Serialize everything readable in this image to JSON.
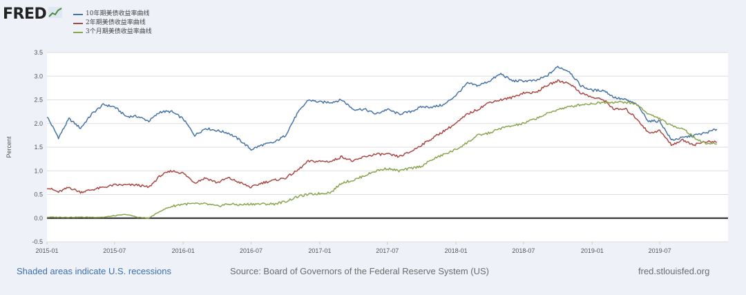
{
  "header": {
    "logo_text": "FRED"
  },
  "footer": {
    "recession_note": "Shaded areas indicate U.S. recessions",
    "source": "Source: Board of Governors of the Federal Reserve System (US)",
    "site": "fred.stlouisfed.org"
  },
  "chart_data": {
    "type": "line",
    "ylabel": "Percent",
    "xlabel": "",
    "title": "",
    "ylim": [
      -0.5,
      3.5
    ],
    "y_ticks": [
      "3.5",
      "3.0",
      "2.5",
      "2.0",
      "1.5",
      "1.0",
      "0.5",
      "0.0",
      "-0.5"
    ],
    "x_ticks": [
      "2015-01",
      "2015-07",
      "2016-01",
      "2016-07",
      "2017-01",
      "2017-07",
      "2018-01",
      "2018-07",
      "2019-01",
      "2019-07"
    ],
    "grid": "horizontal",
    "legend_position": "top-left",
    "colors": {
      "ten_year": "#4572a7",
      "two_year": "#aa4643",
      "three_month": "#89a54e",
      "zero_line": "#222222",
      "grid": "#dddddd"
    },
    "series": [
      {
        "name": "10年期美债收益率曲线",
        "color": "#4572a7",
        "values": [
          [
            "2015-01-01",
            2.15
          ],
          [
            "2015-02-01",
            1.7
          ],
          [
            "2015-03-01",
            2.1
          ],
          [
            "2015-04-01",
            1.9
          ],
          [
            "2015-05-01",
            2.2
          ],
          [
            "2015-06-01",
            2.4
          ],
          [
            "2015-07-01",
            2.35
          ],
          [
            "2015-08-01",
            2.15
          ],
          [
            "2015-09-01",
            2.15
          ],
          [
            "2015-10-01",
            2.05
          ],
          [
            "2015-11-01",
            2.25
          ],
          [
            "2015-12-01",
            2.25
          ],
          [
            "2016-01-01",
            2.1
          ],
          [
            "2016-02-01",
            1.75
          ],
          [
            "2016-03-01",
            1.9
          ],
          [
            "2016-04-01",
            1.85
          ],
          [
            "2016-05-01",
            1.8
          ],
          [
            "2016-06-01",
            1.65
          ],
          [
            "2016-07-01",
            1.45
          ],
          [
            "2016-08-01",
            1.55
          ],
          [
            "2016-09-01",
            1.6
          ],
          [
            "2016-10-01",
            1.75
          ],
          [
            "2016-11-01",
            2.2
          ],
          [
            "2016-12-01",
            2.5
          ],
          [
            "2017-01-01",
            2.45
          ],
          [
            "2017-02-01",
            2.45
          ],
          [
            "2017-03-01",
            2.5
          ],
          [
            "2017-04-01",
            2.3
          ],
          [
            "2017-05-01",
            2.3
          ],
          [
            "2017-06-01",
            2.2
          ],
          [
            "2017-07-01",
            2.3
          ],
          [
            "2017-08-01",
            2.2
          ],
          [
            "2017-09-01",
            2.25
          ],
          [
            "2017-10-01",
            2.35
          ],
          [
            "2017-11-01",
            2.35
          ],
          [
            "2017-12-01",
            2.4
          ],
          [
            "2018-01-01",
            2.6
          ],
          [
            "2018-02-01",
            2.85
          ],
          [
            "2018-03-01",
            2.8
          ],
          [
            "2018-04-01",
            2.9
          ],
          [
            "2018-05-01",
            3.05
          ],
          [
            "2018-06-01",
            2.9
          ],
          [
            "2018-07-01",
            2.9
          ],
          [
            "2018-08-01",
            2.9
          ],
          [
            "2018-09-01",
            3.0
          ],
          [
            "2018-10-01",
            3.2
          ],
          [
            "2018-11-01",
            3.1
          ],
          [
            "2018-12-01",
            2.8
          ],
          [
            "2019-01-01",
            2.7
          ],
          [
            "2019-02-01",
            2.7
          ],
          [
            "2019-03-01",
            2.55
          ],
          [
            "2019-04-01",
            2.5
          ],
          [
            "2019-05-01",
            2.4
          ],
          [
            "2019-06-01",
            2.05
          ],
          [
            "2019-07-01",
            2.05
          ],
          [
            "2019-08-01",
            1.65
          ],
          [
            "2019-09-01",
            1.7
          ],
          [
            "2019-10-01",
            1.75
          ],
          [
            "2019-11-01",
            1.8
          ],
          [
            "2019-12-01",
            1.88
          ]
        ]
      },
      {
        "name": "2年期美债收益率曲线",
        "color": "#aa4643",
        "values": [
          [
            "2015-01-01",
            0.65
          ],
          [
            "2015-02-01",
            0.55
          ],
          [
            "2015-03-01",
            0.65
          ],
          [
            "2015-04-01",
            0.55
          ],
          [
            "2015-05-01",
            0.6
          ],
          [
            "2015-06-01",
            0.65
          ],
          [
            "2015-07-01",
            0.7
          ],
          [
            "2015-08-01",
            0.7
          ],
          [
            "2015-09-01",
            0.7
          ],
          [
            "2015-10-01",
            0.65
          ],
          [
            "2015-11-01",
            0.9
          ],
          [
            "2015-12-01",
            1.0
          ],
          [
            "2016-01-01",
            0.95
          ],
          [
            "2016-02-01",
            0.75
          ],
          [
            "2016-03-01",
            0.85
          ],
          [
            "2016-04-01",
            0.75
          ],
          [
            "2016-05-01",
            0.85
          ],
          [
            "2016-06-01",
            0.75
          ],
          [
            "2016-07-01",
            0.65
          ],
          [
            "2016-08-01",
            0.75
          ],
          [
            "2016-09-01",
            0.8
          ],
          [
            "2016-10-01",
            0.85
          ],
          [
            "2016-11-01",
            1.0
          ],
          [
            "2016-12-01",
            1.2
          ],
          [
            "2017-01-01",
            1.2
          ],
          [
            "2017-02-01",
            1.2
          ],
          [
            "2017-03-01",
            1.3
          ],
          [
            "2017-04-01",
            1.2
          ],
          [
            "2017-05-01",
            1.3
          ],
          [
            "2017-06-01",
            1.35
          ],
          [
            "2017-07-01",
            1.35
          ],
          [
            "2017-08-01",
            1.3
          ],
          [
            "2017-09-01",
            1.4
          ],
          [
            "2017-10-01",
            1.55
          ],
          [
            "2017-11-01",
            1.7
          ],
          [
            "2017-12-01",
            1.85
          ],
          [
            "2018-01-01",
            2.0
          ],
          [
            "2018-02-01",
            2.2
          ],
          [
            "2018-03-01",
            2.3
          ],
          [
            "2018-04-01",
            2.45
          ],
          [
            "2018-05-01",
            2.5
          ],
          [
            "2018-06-01",
            2.55
          ],
          [
            "2018-07-01",
            2.65
          ],
          [
            "2018-08-01",
            2.65
          ],
          [
            "2018-09-01",
            2.8
          ],
          [
            "2018-10-01",
            2.9
          ],
          [
            "2018-11-01",
            2.85
          ],
          [
            "2018-12-01",
            2.65
          ],
          [
            "2019-01-01",
            2.55
          ],
          [
            "2019-02-01",
            2.5
          ],
          [
            "2019-03-01",
            2.3
          ],
          [
            "2019-04-01",
            2.3
          ],
          [
            "2019-05-01",
            2.1
          ],
          [
            "2019-06-01",
            1.8
          ],
          [
            "2019-07-01",
            1.85
          ],
          [
            "2019-08-01",
            1.55
          ],
          [
            "2019-09-01",
            1.65
          ],
          [
            "2019-10-01",
            1.55
          ],
          [
            "2019-11-01",
            1.62
          ],
          [
            "2019-12-01",
            1.6
          ]
        ]
      },
      {
        "name": "3个月期美债收益率曲线",
        "color": "#89a54e",
        "values": [
          [
            "2015-01-01",
            0.02
          ],
          [
            "2015-02-01",
            0.02
          ],
          [
            "2015-03-01",
            0.02
          ],
          [
            "2015-04-01",
            0.02
          ],
          [
            "2015-05-01",
            0.02
          ],
          [
            "2015-06-01",
            0.02
          ],
          [
            "2015-07-01",
            0.05
          ],
          [
            "2015-08-01",
            0.08
          ],
          [
            "2015-09-01",
            0.02
          ],
          [
            "2015-10-01",
            0.0
          ],
          [
            "2015-11-01",
            0.15
          ],
          [
            "2015-12-01",
            0.25
          ],
          [
            "2016-01-01",
            0.3
          ],
          [
            "2016-02-01",
            0.3
          ],
          [
            "2016-03-01",
            0.3
          ],
          [
            "2016-04-01",
            0.25
          ],
          [
            "2016-05-01",
            0.3
          ],
          [
            "2016-06-01",
            0.28
          ],
          [
            "2016-07-01",
            0.3
          ],
          [
            "2016-08-01",
            0.3
          ],
          [
            "2016-09-01",
            0.3
          ],
          [
            "2016-10-01",
            0.35
          ],
          [
            "2016-11-01",
            0.45
          ],
          [
            "2016-12-01",
            0.5
          ],
          [
            "2017-01-01",
            0.52
          ],
          [
            "2017-02-01",
            0.55
          ],
          [
            "2017-03-01",
            0.75
          ],
          [
            "2017-04-01",
            0.8
          ],
          [
            "2017-05-01",
            0.9
          ],
          [
            "2017-06-01",
            1.0
          ],
          [
            "2017-07-01",
            1.05
          ],
          [
            "2017-08-01",
            1.0
          ],
          [
            "2017-09-01",
            1.05
          ],
          [
            "2017-10-01",
            1.1
          ],
          [
            "2017-11-01",
            1.25
          ],
          [
            "2017-12-01",
            1.35
          ],
          [
            "2018-01-01",
            1.45
          ],
          [
            "2018-02-01",
            1.6
          ],
          [
            "2018-03-01",
            1.75
          ],
          [
            "2018-04-01",
            1.8
          ],
          [
            "2018-05-01",
            1.9
          ],
          [
            "2018-06-01",
            1.95
          ],
          [
            "2018-07-01",
            2.0
          ],
          [
            "2018-08-01",
            2.1
          ],
          [
            "2018-09-01",
            2.2
          ],
          [
            "2018-10-01",
            2.3
          ],
          [
            "2018-11-01",
            2.35
          ],
          [
            "2018-12-01",
            2.4
          ],
          [
            "2019-01-01",
            2.42
          ],
          [
            "2019-02-01",
            2.45
          ],
          [
            "2019-03-01",
            2.45
          ],
          [
            "2019-04-01",
            2.45
          ],
          [
            "2019-05-01",
            2.4
          ],
          [
            "2019-06-01",
            2.2
          ],
          [
            "2019-07-01",
            2.1
          ],
          [
            "2019-08-01",
            1.95
          ],
          [
            "2019-09-01",
            1.9
          ],
          [
            "2019-10-01",
            1.7
          ],
          [
            "2019-11-01",
            1.58
          ],
          [
            "2019-12-01",
            1.57
          ]
        ]
      }
    ]
  }
}
